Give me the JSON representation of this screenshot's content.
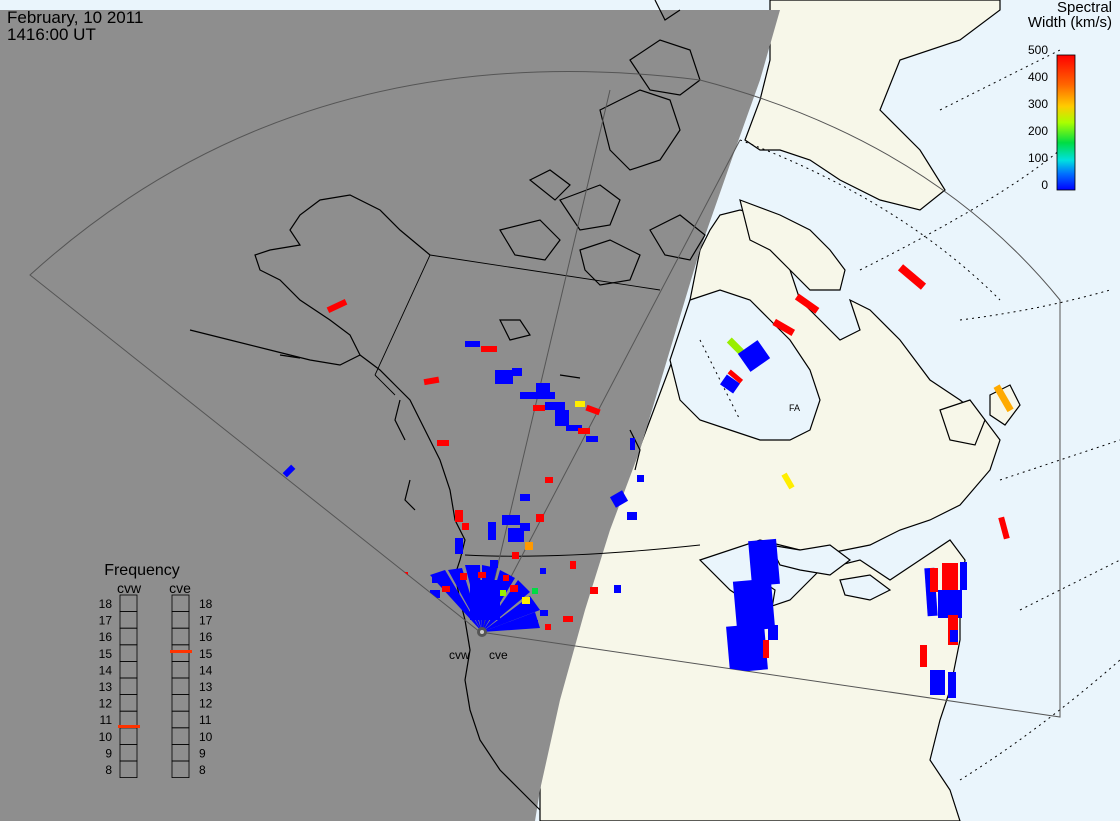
{
  "header": {
    "date": "February, 10 2011",
    "time": "1416:00 UT"
  },
  "colorbar": {
    "title_line1": "Spectral",
    "title_line2": "Width (km/s)",
    "ticks": [
      "500",
      "400",
      "300",
      "200",
      "100",
      "0"
    ],
    "stops": [
      "#ff0000",
      "#ff6600",
      "#ffcc00",
      "#aaff00",
      "#00dd44",
      "#00e0e0",
      "#0070ff",
      "#0000ff"
    ]
  },
  "frequency_legend": {
    "title": "Frequency",
    "radars": [
      {
        "name": "cvw",
        "level": "10.5"
      },
      {
        "name": "cve",
        "level": "15"
      }
    ],
    "levels": [
      "18",
      "17",
      "16",
      "15",
      "14",
      "13",
      "12",
      "11",
      "10",
      "9",
      "8"
    ]
  },
  "stations": [
    {
      "code": "cvw"
    },
    {
      "code": "cve"
    }
  ],
  "map_label": "FA",
  "colors": {
    "night": "#8e8e8e",
    "day_land": "#f7f7e9",
    "day_ocean": "#eaf5fc",
    "low": "#0000ff",
    "high": "#ff0000",
    "mid": "#ffee00",
    "green": "#99ee00",
    "orange": "#ffaa00"
  }
}
